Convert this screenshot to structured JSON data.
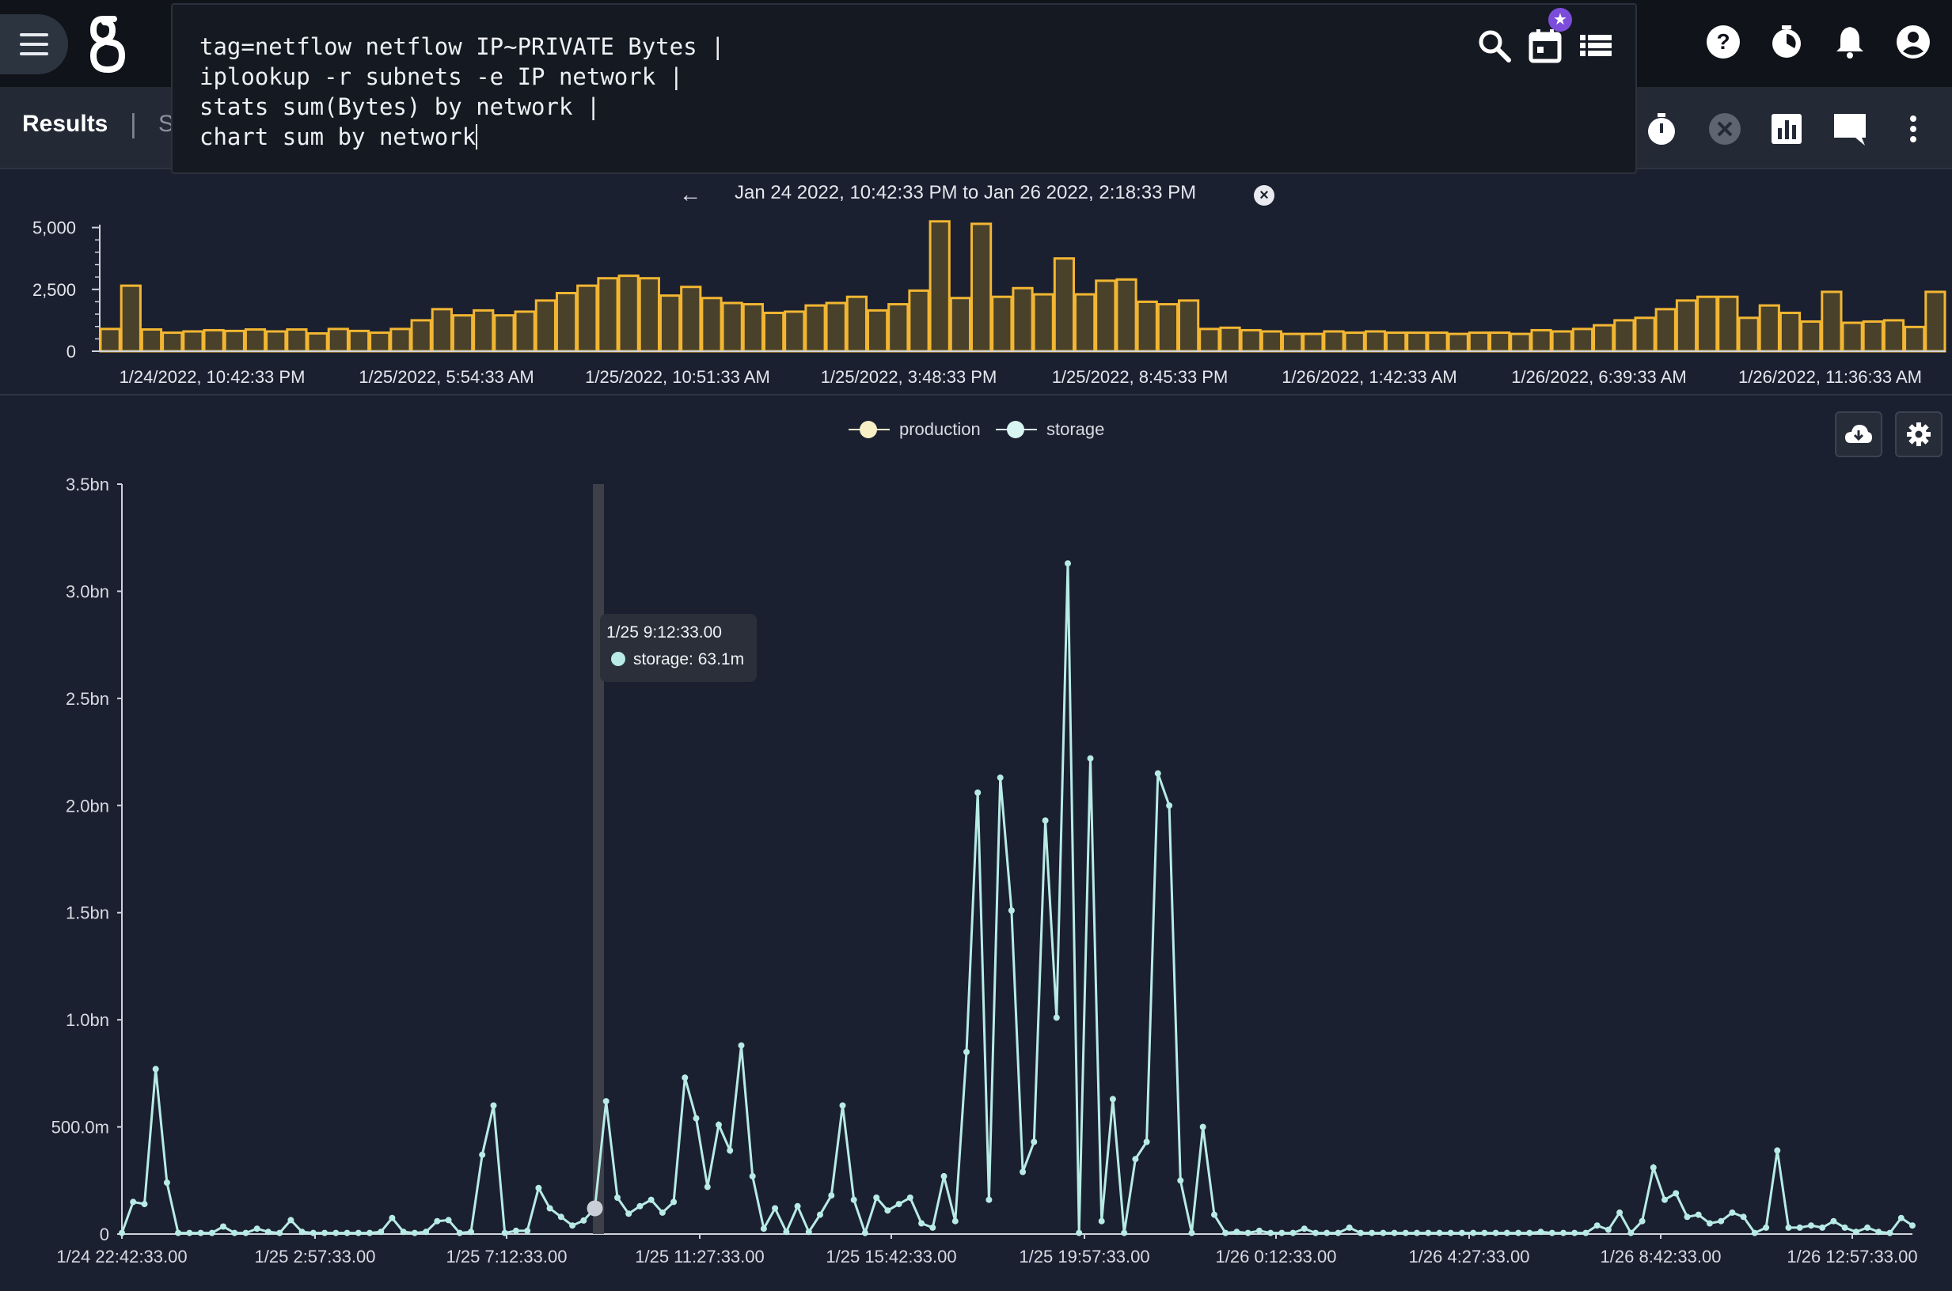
{
  "query": {
    "lines": [
      "tag=netflow netflow IP~PRIVATE Bytes |",
      "iplookup -r subnets -e IP network |",
      "stats sum(Bytes) by network |",
      "chart sum by network"
    ]
  },
  "icons": {
    "menu": "menu-icon",
    "logo": "gravwell-logo",
    "search": "search-icon",
    "calendar": "calendar-icon",
    "list": "list-icon",
    "help": "help-icon",
    "timer": "timer-icon",
    "bell": "bell-icon",
    "account": "account-icon",
    "stopwatch": "stopwatch-icon",
    "cancel": "cancel-icon",
    "chart": "bar-chart-icon",
    "comment": "comment-icon",
    "more": "more-vert-icon",
    "download": "cloud-download-icon",
    "settings": "gear-icon"
  },
  "tabs": {
    "results": "Results",
    "separator": "|",
    "truncated": "S"
  },
  "time_range": {
    "text": "Jan 24 2022, 10:42:33 PM to Jan 26 2022, 2:18:33 PM",
    "back": "←",
    "clear": "×"
  },
  "tooltip": {
    "time": "1/25 9:12:33.00",
    "series": "storage",
    "value": "63.1m"
  },
  "colors": {
    "bar_fill": "#4a412b",
    "bar_stroke": "#f2b632",
    "line": "#b8ebe6",
    "production": "#f7f0c6",
    "storage": "#d9f5f2",
    "accent": "#7c4ddb"
  },
  "chart_data": [
    {
      "type": "bar",
      "yticks": [
        "5,000",
        "2,500",
        "0"
      ],
      "ylim": [
        0,
        5500
      ],
      "xticks": [
        "1/24/2022, 10:42:33 PM",
        "1/25/2022, 5:54:33 AM",
        "1/25/2022, 10:51:33 AM",
        "1/25/2022, 3:48:33 PM",
        "1/25/2022, 8:45:33 PM",
        "1/26/2022, 1:42:33 AM",
        "1/26/2022, 6:39:33 AM",
        "1/26/2022, 11:36:33 AM"
      ],
      "values": [
        900,
        2650,
        880,
        750,
        800,
        850,
        820,
        880,
        800,
        880,
        720,
        900,
        820,
        750,
        900,
        1250,
        1700,
        1450,
        1650,
        1450,
        1600,
        2050,
        2350,
        2650,
        2950,
        3050,
        2950,
        2250,
        2600,
        2150,
        1950,
        1900,
        1550,
        1600,
        1850,
        1950,
        2200,
        1650,
        1900,
        2450,
        5250,
        2150,
        5150,
        2200,
        2550,
        2300,
        3750,
        2300,
        2850,
        2900,
        2000,
        1900,
        2050,
        900,
        950,
        850,
        800,
        700,
        700,
        800,
        750,
        800,
        750,
        750,
        750,
        700,
        750,
        750,
        700,
        850,
        800,
        900,
        1050,
        1250,
        1350,
        1700,
        2050,
        2200,
        2200,
        1350,
        1850,
        1550,
        1200,
        2400,
        1150,
        1200,
        1250,
        980,
        2400
      ]
    },
    {
      "type": "line",
      "legend": [
        {
          "name": "production",
          "color": "#f7f0c6"
        },
        {
          "name": "storage",
          "color": "#d9f5f2"
        }
      ],
      "yticks": [
        "3.5bn",
        "3.0bn",
        "2.5bn",
        "2.0bn",
        "1.5bn",
        "1.0bn",
        "500.0m",
        "0"
      ],
      "ylim": [
        0,
        3500
      ],
      "xticks": [
        "1/24 22:42:33.00",
        "1/25 2:57:33.00",
        "1/25 7:12:33.00",
        "1/25 11:27:33.00",
        "1/25 15:42:33.00",
        "1/25 19:57:33.00",
        "1/26 0:12:33.00",
        "1/26 4:27:33.00",
        "1/26 8:42:33.00",
        "1/26 12:57:33.00"
      ],
      "units": "millions",
      "series": [
        {
          "name": "storage",
          "values": [
            5,
            150,
            140,
            770,
            240,
            5,
            5,
            5,
            5,
            35,
            5,
            5,
            25,
            10,
            5,
            65,
            10,
            5,
            5,
            5,
            5,
            5,
            5,
            10,
            75,
            10,
            5,
            10,
            60,
            65,
            5,
            10,
            370,
            600,
            5,
            15,
            15,
            215,
            120,
            80,
            40,
            63,
            120,
            620,
            170,
            95,
            130,
            160,
            100,
            150,
            730,
            540,
            220,
            510,
            390,
            880,
            270,
            25,
            120,
            10,
            130,
            10,
            90,
            180,
            600,
            160,
            5,
            170,
            110,
            140,
            170,
            50,
            30,
            270,
            60,
            850,
            2060,
            160,
            2130,
            1510,
            290,
            430,
            1930,
            1010,
            3130,
            5,
            2220,
            60,
            630,
            5,
            350,
            430,
            2150,
            2000,
            250,
            5,
            500,
            90,
            5,
            10,
            5,
            15,
            5,
            5,
            5,
            25,
            5,
            5,
            5,
            30,
            5,
            5,
            5,
            5,
            5,
            5,
            5,
            5,
            5,
            5,
            5,
            5,
            5,
            5,
            5,
            5,
            10,
            5,
            5,
            5,
            5,
            40,
            20,
            100,
            5,
            60,
            310,
            160,
            190,
            80,
            90,
            50,
            60,
            100,
            80,
            5,
            30,
            390,
            30,
            30,
            40,
            30,
            60,
            30,
            10,
            30,
            10,
            5,
            75,
            40
          ]
        }
      ]
    }
  ]
}
